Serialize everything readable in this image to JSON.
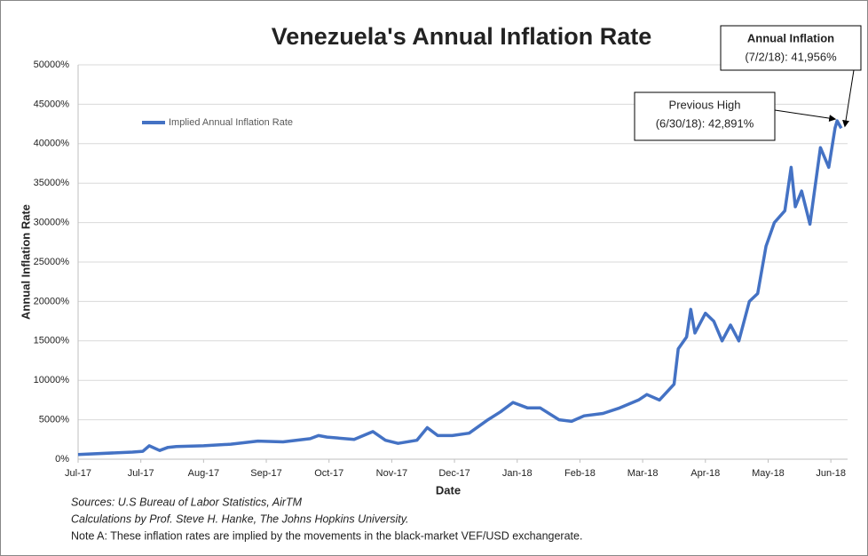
{
  "chart_data": {
    "type": "line",
    "title": "Venezuela's Annual Inflation Rate",
    "x_label": "Date",
    "y_label": "Annual Inflation Rate",
    "legend_position": "upper left",
    "grid": true,
    "xlim": [
      0,
      368
    ],
    "xticks": [
      {
        "value": 0,
        "label": "Jul-17"
      },
      {
        "value": 30,
        "label": "Jul-17"
      },
      {
        "value": 60,
        "label": "Aug-17"
      },
      {
        "value": 90,
        "label": "Sep-17"
      },
      {
        "value": 120,
        "label": "Oct-17"
      },
      {
        "value": 150,
        "label": "Nov-17"
      },
      {
        "value": 180,
        "label": "Dec-17"
      },
      {
        "value": 210,
        "label": "Jan-18"
      },
      {
        "value": 240,
        "label": "Feb-18"
      },
      {
        "value": 270,
        "label": "Mar-18"
      },
      {
        "value": 300,
        "label": "Apr-18"
      },
      {
        "value": 330,
        "label": "May-18"
      },
      {
        "value": 360,
        "label": "Jun-18"
      }
    ],
    "ylim": [
      0,
      50000
    ],
    "yticks": [
      {
        "value": 0,
        "label": "0%"
      },
      {
        "value": 5000,
        "label": "5000%"
      },
      {
        "value": 10000,
        "label": "10000%"
      },
      {
        "value": 15000,
        "label": "15000%"
      },
      {
        "value": 20000,
        "label": "20000%"
      },
      {
        "value": 25000,
        "label": "25000%"
      },
      {
        "value": 30000,
        "label": "30000%"
      },
      {
        "value": 35000,
        "label": "35000%"
      },
      {
        "value": 40000,
        "label": "40000%"
      },
      {
        "value": 45000,
        "label": "45000%"
      },
      {
        "value": 50000,
        "label": "50000%"
      }
    ],
    "x": [
      0,
      26,
      31,
      34,
      39,
      43,
      47,
      60,
      73,
      86,
      98,
      111,
      115,
      119,
      132,
      141,
      147,
      153,
      162,
      167,
      172,
      179,
      187,
      196,
      202,
      208,
      215,
      221,
      230,
      236,
      242,
      251,
      259,
      268,
      272,
      278,
      285,
      287,
      291,
      293,
      295,
      300,
      304,
      308,
      312,
      316,
      321,
      325,
      329,
      333,
      338,
      341,
      343,
      346,
      350,
      355,
      359,
      362,
      363,
      365
    ],
    "series": [
      {
        "name": "Implied Annual Inflation Rate",
        "color": "#4472c4",
        "values": [
          600,
          900,
          1000,
          1700,
          1100,
          1500,
          1600,
          1700,
          1900,
          2300,
          2200,
          2600,
          3000,
          2800,
          2500,
          3500,
          2400,
          2000,
          2400,
          4000,
          3000,
          3000,
          3300,
          5000,
          6000,
          7200,
          6500,
          6500,
          5000,
          4800,
          5500,
          5800,
          6500,
          7500,
          8200,
          7500,
          9500,
          14000,
          15500,
          19000,
          16000,
          18500,
          17500,
          15000,
          17000,
          15000,
          20000,
          21000,
          27000,
          30000,
          31500,
          37000,
          32000,
          34000,
          29800,
          39500,
          37000,
          42000,
          42891,
          41956
        ]
      }
    ],
    "annotations": [
      {
        "lines": [
          "Annual Inflation",
          "(7/2/18): 41,956%"
        ]
      },
      {
        "lines": [
          "Previous High",
          "(6/30/18): 42,891%"
        ]
      }
    ],
    "notes": [
      "Sources: U.S Bureau of Labor Statistics, AirTM",
      "Calculations by Prof. Steve H. Hanke, The Johns Hopkins University.",
      "Note A: These inflation rates are implied by the movements in the black-market VEF/USD exchangerate."
    ]
  }
}
